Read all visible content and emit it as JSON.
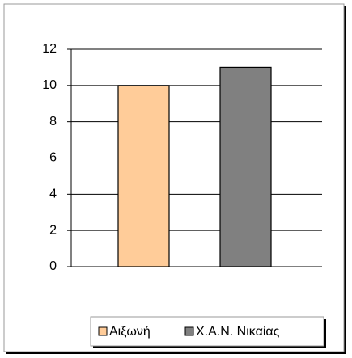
{
  "chart_data": {
    "type": "bar",
    "categories": [
      "Αιξωνή",
      "Χ.Α.Ν. Νικαίας"
    ],
    "values": [
      10,
      11
    ],
    "colors": [
      "#ffcc99",
      "#808080"
    ],
    "ylim": [
      0,
      12
    ],
    "yticks": [
      0,
      2,
      4,
      6,
      8,
      10,
      12
    ],
    "grid": true,
    "legend": "bottom"
  }
}
